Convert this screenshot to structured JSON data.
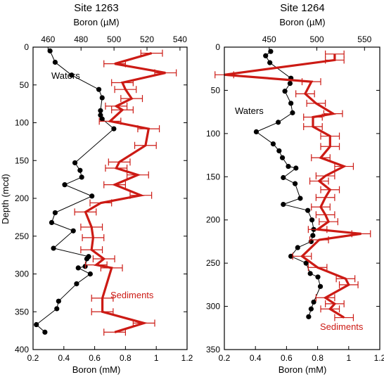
{
  "colors": {
    "sediment": "#cc1a14",
    "water": "#000000",
    "frame": "#000000"
  },
  "chart_data": [
    {
      "type": "line",
      "title": "Site 1263",
      "xlabel": "Boron (mM)",
      "x2label": "Boron (µM)",
      "ylabel": "Depth (mcd)",
      "xlim": [
        0.2,
        1.2
      ],
      "ylim": [
        0,
        400
      ],
      "x2lim": [
        450.9,
        544.3
      ],
      "xticks": [
        "0.2",
        "0.4",
        "0.6",
        "0.8",
        "1",
        "1.2"
      ],
      "x2ticks": [
        "460",
        "480",
        "500",
        "520",
        "540"
      ],
      "yticks": [
        "0",
        "50",
        "100",
        "150",
        "200",
        "250",
        "300",
        "350",
        "400"
      ],
      "grid": false,
      "series": [
        {
          "name": "Waters",
          "axis": "top",
          "marker": "circle",
          "points": [
            [
              461.2,
              5
            ],
            [
              464.3,
              20
            ],
            [
              474.3,
              37
            ],
            [
              490.8,
              56
            ],
            [
              492.8,
              67
            ],
            [
              491.8,
              84
            ],
            [
              491.8,
              90
            ],
            [
              492.8,
              95
            ],
            [
              499.9,
              108
            ],
            [
              476.3,
              153
            ],
            [
              479.4,
              163
            ],
            [
              480.4,
              172
            ],
            [
              470.1,
              182
            ],
            [
              486.6,
              197
            ],
            [
              464.3,
              219
            ],
            [
              462.2,
              232
            ],
            [
              475.3,
              243
            ],
            [
              463.3,
              266
            ],
            [
              484.6,
              277
            ],
            [
              483.5,
              280
            ],
            [
              482.5,
              290
            ],
            [
              478.3,
              292
            ],
            [
              485.6,
              300
            ],
            [
              477.3,
              313
            ],
            [
              466.4,
              336
            ],
            [
              465.3,
              346
            ],
            [
              452.9,
              367
            ],
            [
              458.1,
              377
            ]
          ]
        },
        {
          "name": "Sediments",
          "axis": "bottom",
          "marker": "errorbar",
          "xerr": 0.07,
          "points": [
            [
              0.97,
              8
            ],
            [
              0.73,
              22
            ],
            [
              1.06,
              34
            ],
            [
              0.78,
              47
            ],
            [
              0.8,
              56
            ],
            [
              0.84,
              68
            ],
            [
              0.74,
              78
            ],
            [
              0.78,
              83
            ],
            [
              0.7,
              98
            ],
            [
              0.95,
              108
            ],
            [
              0.93,
              130
            ],
            [
              0.76,
              152
            ],
            [
              0.74,
              160
            ],
            [
              0.88,
              169
            ],
            [
              0.73,
              182
            ],
            [
              0.9,
              196
            ],
            [
              0.64,
              206
            ],
            [
              0.54,
              218
            ],
            [
              0.58,
              238
            ],
            [
              0.59,
              252
            ],
            [
              0.58,
              268
            ],
            [
              0.66,
              280
            ],
            [
              0.61,
              288
            ],
            [
              0.71,
              292
            ],
            [
              0.65,
              332
            ],
            [
              0.65,
              350
            ],
            [
              0.92,
              365
            ],
            [
              0.73,
              377
            ]
          ]
        }
      ],
      "annotations": [
        {
          "text": "Waters",
          "color": "water"
        },
        {
          "text": "Sediments",
          "color": "sediment"
        }
      ]
    },
    {
      "type": "line",
      "title": "Site 1264",
      "xlabel": "Boron (mM)",
      "x2label": "Boron (µM)",
      "ylabel": "",
      "xlim": [
        0.2,
        1.2
      ],
      "ylim": [
        0,
        350
      ],
      "x2lim": [
        403,
        566
      ],
      "xticks": [
        "0.2",
        "0.4",
        "0.6",
        "0.8",
        "1",
        "1.2"
      ],
      "x2ticks": [
        "450",
        "500",
        "550"
      ],
      "yticks": [
        "0",
        "50",
        "100",
        "150",
        "200",
        "250",
        "300",
        "350"
      ],
      "grid": false,
      "series": [
        {
          "name": "Waters",
          "axis": "top",
          "marker": "circle",
          "points": [
            [
              451.6,
              5
            ],
            [
              446.3,
              10
            ],
            [
              450.7,
              18
            ],
            [
              472.8,
              36
            ],
            [
              471.9,
              42
            ],
            [
              466.5,
              51
            ],
            [
              472.8,
              65
            ],
            [
              474.5,
              76
            ],
            [
              459.5,
              87
            ],
            [
              436.5,
              98
            ],
            [
              454.2,
              112
            ],
            [
              460.4,
              120
            ],
            [
              463.9,
              128
            ],
            [
              470.1,
              138
            ],
            [
              478.1,
              140
            ],
            [
              464.8,
              151
            ],
            [
              477.2,
              158
            ],
            [
              482.6,
              175
            ],
            [
              464.8,
              182
            ],
            [
              490.5,
              189
            ],
            [
              494.9,
              200
            ],
            [
              496.7,
              211
            ],
            [
              495.8,
              218
            ],
            [
              494.0,
              225
            ],
            [
              479.9,
              232
            ],
            [
              472.8,
              242
            ],
            [
              488.7,
              250
            ],
            [
              493.1,
              262
            ],
            [
              501.1,
              266
            ],
            [
              503.7,
              277
            ],
            [
              496.7,
              295
            ],
            [
              494.0,
              303
            ],
            [
              491.4,
              312
            ]
          ]
        },
        {
          "name": "Sediments",
          "axis": "bottom",
          "marker": "errorbar",
          "xerr": 0.06,
          "points": [
            [
              0.91,
              8
            ],
            [
              0.91,
              15
            ],
            [
              0.2,
              32
            ],
            [
              0.76,
              40
            ],
            [
              0.72,
              54
            ],
            [
              0.79,
              65
            ],
            [
              0.9,
              77
            ],
            [
              0.77,
              81
            ],
            [
              0.77,
              92
            ],
            [
              0.88,
              103
            ],
            [
              0.88,
              115
            ],
            [
              0.82,
              128
            ],
            [
              0.97,
              138
            ],
            [
              0.85,
              149
            ],
            [
              0.81,
              155
            ],
            [
              0.88,
              165
            ],
            [
              0.85,
              174
            ],
            [
              0.82,
              185
            ],
            [
              0.85,
              194
            ],
            [
              0.87,
              202
            ],
            [
              0.8,
              211
            ],
            [
              1.08,
              216
            ],
            [
              0.81,
              223
            ],
            [
              0.7,
              242
            ],
            [
              0.8,
              255
            ],
            [
              0.98,
              268
            ],
            [
              1.0,
              275
            ],
            [
              0.85,
              290
            ],
            [
              0.91,
              297
            ],
            [
              0.88,
              303
            ],
            [
              0.97,
              313
            ]
          ]
        }
      ],
      "annotations": [
        {
          "text": "Waters",
          "color": "water"
        },
        {
          "text": "Sediments",
          "color": "sediment"
        }
      ]
    }
  ]
}
